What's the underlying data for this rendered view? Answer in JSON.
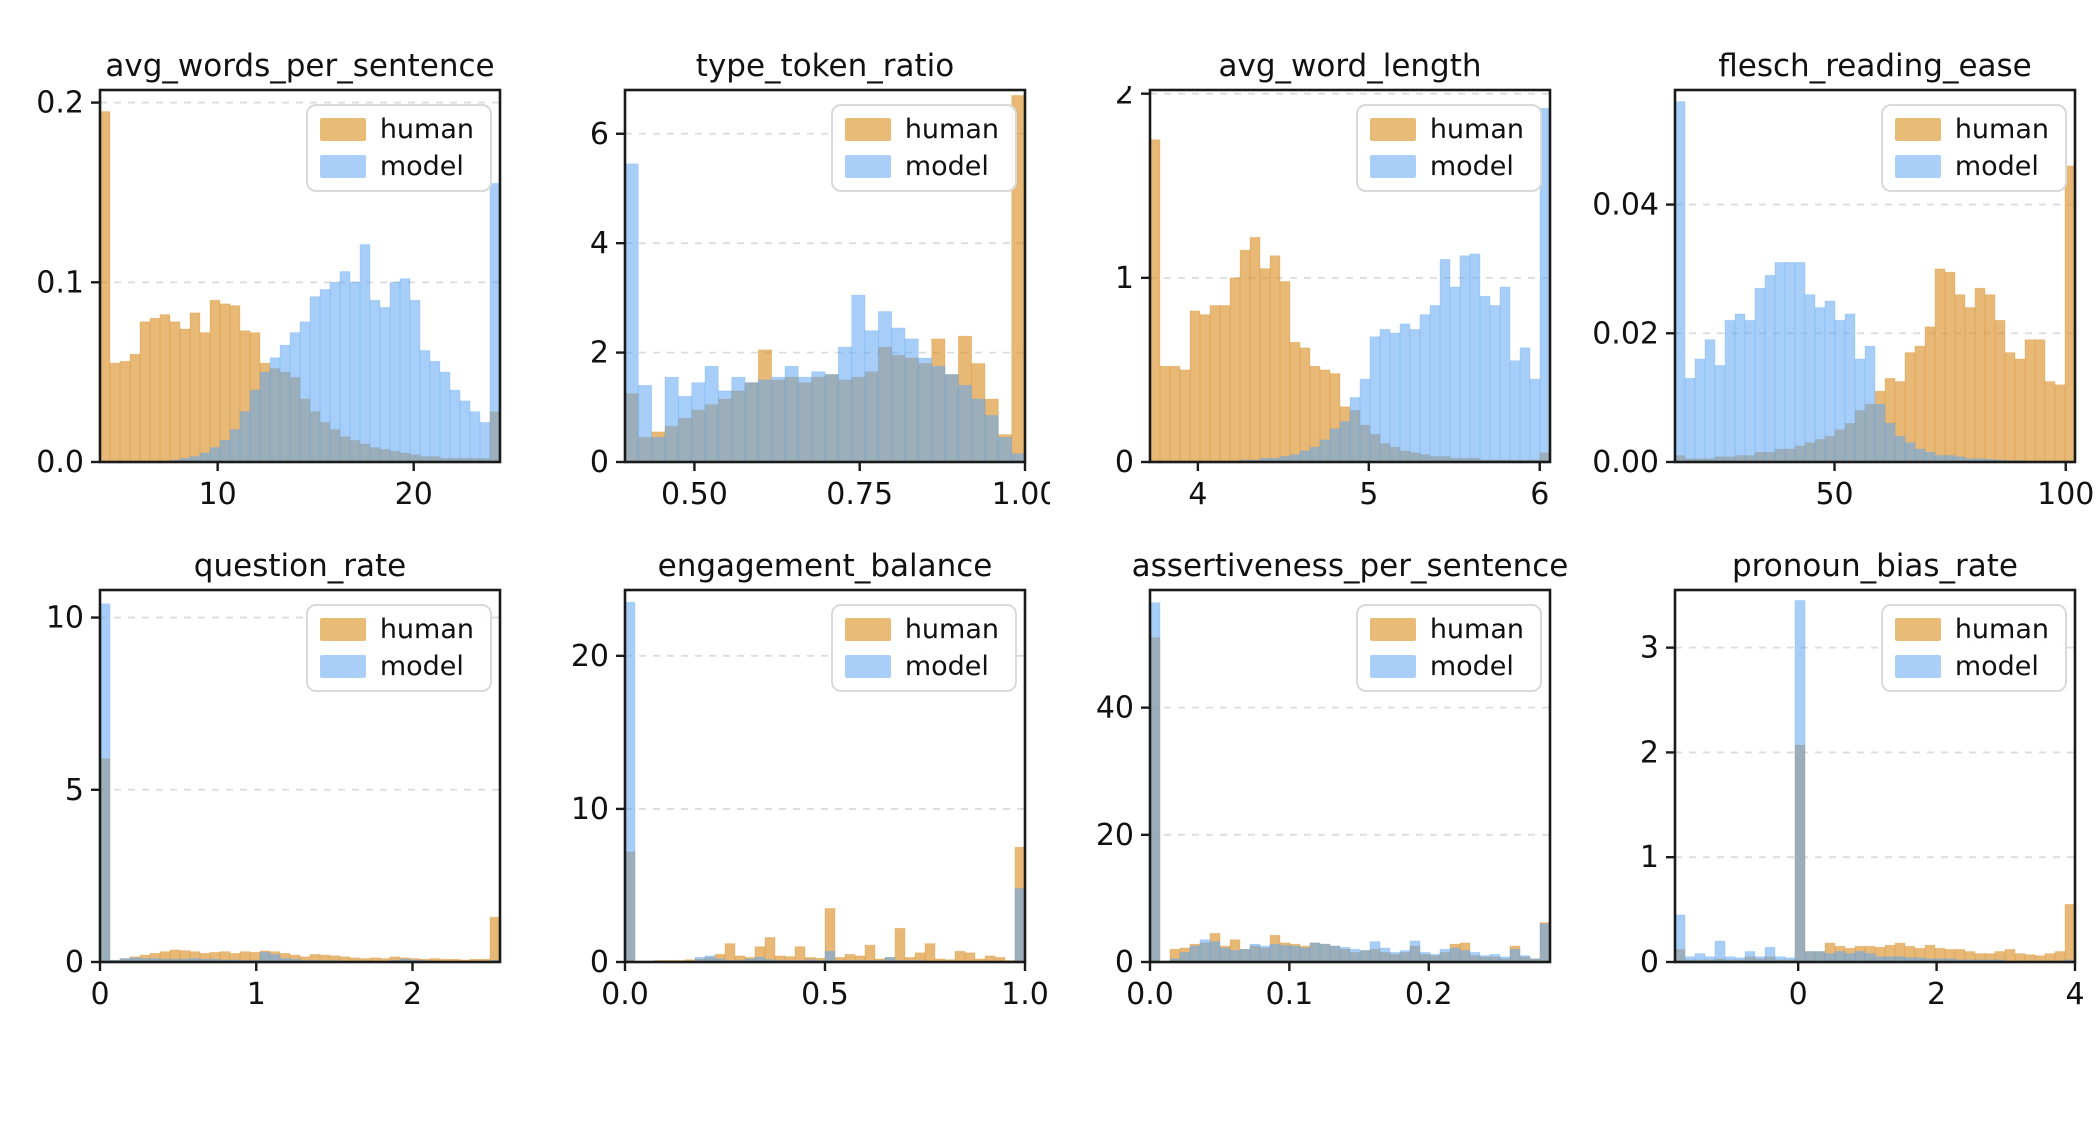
{
  "figure": {
    "background": "#ffffff",
    "rows": 2,
    "cols": 4
  },
  "legend": {
    "human_label": "human",
    "model_label": "model"
  },
  "style": {
    "human_color": "#d98c22",
    "human_opacity": 0.62,
    "model_color": "#5ea5f2",
    "model_opacity": 0.55,
    "legend_swatch_human": "#e8bb77",
    "legend_swatch_model": "#a9cff8",
    "grid_color": "#dcdcdc",
    "spine_color": "#1a1a1a",
    "legend_position": "upper right",
    "grid": "horizontal dashed"
  },
  "chart_data": [
    {
      "type": "bar",
      "subtype": "histogram-overlay",
      "title": "avg_words_per_sentence",
      "xlim": [
        4.0,
        24.4
      ],
      "ylim": [
        0,
        0.207
      ],
      "xticks": [
        10,
        20
      ],
      "xtick_labels": [
        "10",
        "20"
      ],
      "yticks": [
        0,
        0.1,
        0.2
      ],
      "ytick_labels": [
        "0.0",
        "0.1",
        "0.2"
      ],
      "series": [
        {
          "name": "human",
          "values": [
            0.195,
            0.055,
            0.056,
            0.06,
            0.078,
            0.08,
            0.082,
            0.078,
            0.074,
            0.083,
            0.072,
            0.09,
            0.088,
            0.087,
            0.073,
            0.072,
            0.055,
            0.052,
            0.05,
            0.047,
            0.035,
            0.028,
            0.022,
            0.018,
            0.014,
            0.012,
            0.01,
            0.008,
            0.007,
            0.006,
            0.005,
            0.004,
            0.003,
            0.003,
            0.002,
            0.002,
            0.002,
            0.002,
            0.002,
            0.028
          ]
        },
        {
          "name": "model",
          "values": [
            0,
            0,
            0,
            0,
            0,
            0,
            0,
            0.001,
            0.002,
            0.003,
            0.005,
            0.008,
            0.012,
            0.018,
            0.028,
            0.04,
            0.05,
            0.058,
            0.065,
            0.072,
            0.078,
            0.092,
            0.096,
            0.1,
            0.106,
            0.1,
            0.121,
            0.09,
            0.086,
            0.1,
            0.102,
            0.09,
            0.062,
            0.056,
            0.05,
            0.04,
            0.034,
            0.028,
            0.022,
            0.155
          ]
        }
      ]
    },
    {
      "type": "bar",
      "subtype": "histogram-overlay",
      "title": "type_token_ratio",
      "xlim": [
        0.395,
        1.0
      ],
      "ylim": [
        0,
        6.8
      ],
      "xticks": [
        0.5,
        0.75,
        1.0
      ],
      "xtick_labels": [
        "0.50",
        "0.75",
        "1.00"
      ],
      "yticks": [
        0,
        2,
        4,
        6
      ],
      "ytick_labels": [
        "0",
        "2",
        "4",
        "6"
      ],
      "series": [
        {
          "name": "human",
          "values": [
            1.25,
            0.45,
            0.55,
            0.65,
            0.8,
            0.95,
            1.05,
            1.15,
            1.3,
            1.45,
            2.05,
            1.5,
            1.55,
            1.45,
            1.55,
            1.6,
            1.5,
            1.55,
            1.65,
            2.1,
            1.95,
            1.9,
            1.8,
            2.25,
            1.6,
            2.3,
            1.8,
            1.15,
            0.5,
            6.7
          ]
        },
        {
          "name": "model",
          "values": [
            5.45,
            1.4,
            0.45,
            1.55,
            1.2,
            1.45,
            1.75,
            1.3,
            1.55,
            1.45,
            1.5,
            1.55,
            1.75,
            1.55,
            1.65,
            1.6,
            2.1,
            3.05,
            2.4,
            2.75,
            2.45,
            2.25,
            1.9,
            1.75,
            1.6,
            1.4,
            1.15,
            0.85,
            0.45,
            0.15
          ]
        }
      ]
    },
    {
      "type": "bar",
      "subtype": "histogram-overlay",
      "title": "avg_word_length",
      "xlim": [
        3.72,
        6.06
      ],
      "ylim": [
        0,
        2.02
      ],
      "xticks": [
        4,
        5,
        6
      ],
      "xtick_labels": [
        "4",
        "5",
        "6"
      ],
      "yticks": [
        0,
        1,
        2
      ],
      "ytick_labels": [
        "0",
        "1",
        "2"
      ],
      "series": [
        {
          "name": "human",
          "values": [
            1.75,
            0.52,
            0.52,
            0.5,
            0.82,
            0.8,
            0.85,
            0.85,
            1.0,
            1.15,
            1.22,
            1.05,
            1.12,
            0.98,
            0.65,
            0.62,
            0.52,
            0.5,
            0.48,
            0.3,
            0.28,
            0.2,
            0.15,
            0.1,
            0.08,
            0.06,
            0.05,
            0.04,
            0.03,
            0.03,
            0.02,
            0.02,
            0.02,
            0.01,
            0.01,
            0.01,
            0.01,
            0.01,
            0.01,
            0.05
          ]
        },
        {
          "name": "model",
          "values": [
            0,
            0,
            0,
            0,
            0,
            0,
            0,
            0,
            0,
            0.01,
            0.01,
            0.02,
            0.02,
            0.03,
            0.04,
            0.06,
            0.08,
            0.12,
            0.18,
            0.22,
            0.35,
            0.45,
            0.68,
            0.72,
            0.7,
            0.75,
            0.72,
            0.8,
            0.85,
            1.1,
            0.95,
            1.12,
            1.13,
            0.9,
            0.85,
            0.95,
            0.55,
            0.62,
            0.45,
            1.92
          ]
        }
      ]
    },
    {
      "type": "bar",
      "subtype": "histogram-overlay",
      "title": "flesch_reading_ease",
      "xlim": [
        15.5,
        102
      ],
      "ylim": [
        0,
        0.0578
      ],
      "xticks": [
        50,
        100
      ],
      "xtick_labels": [
        "50",
        "100"
      ],
      "yticks": [
        0,
        0.02,
        0.04
      ],
      "ytick_labels": [
        "0.00",
        "0.02",
        "0.04"
      ],
      "series": [
        {
          "name": "human",
          "values": [
            0.001,
            0.0005,
            0.0005,
            0.0005,
            0.0008,
            0.0008,
            0.001,
            0.001,
            0.0015,
            0.0015,
            0.002,
            0.002,
            0.0025,
            0.003,
            0.0035,
            0.004,
            0.005,
            0.006,
            0.008,
            0.009,
            0.011,
            0.013,
            0.0125,
            0.017,
            0.018,
            0.021,
            0.03,
            0.0295,
            0.026,
            0.024,
            0.027,
            0.026,
            0.022,
            0.017,
            0.016,
            0.019,
            0.019,
            0.0125,
            0.012,
            0.046
          ]
        },
        {
          "name": "model",
          "values": [
            0.056,
            0.013,
            0.016,
            0.019,
            0.015,
            0.022,
            0.023,
            0.022,
            0.027,
            0.029,
            0.031,
            0.031,
            0.031,
            0.026,
            0.024,
            0.025,
            0.022,
            0.023,
            0.016,
            0.018,
            0.009,
            0.006,
            0.004,
            0.003,
            0.002,
            0.0015,
            0.001,
            0.001,
            0.0008,
            0.0005,
            0.0005,
            0.0004,
            0.0003,
            0.0002,
            0.0002,
            0.0001,
            0.0001,
            0,
            0,
            0
          ]
        }
      ]
    },
    {
      "type": "bar",
      "subtype": "histogram-overlay",
      "title": "question_rate",
      "xlim": [
        0,
        2.56
      ],
      "ylim": [
        0,
        10.8
      ],
      "xticks": [
        0,
        1,
        2
      ],
      "xtick_labels": [
        "0",
        "1",
        "2"
      ],
      "yticks": [
        0,
        5,
        10
      ],
      "ytick_labels": [
        "0",
        "5",
        "10"
      ],
      "series": [
        {
          "name": "human",
          "values": [
            5.9,
            0.05,
            0.1,
            0.15,
            0.2,
            0.25,
            0.3,
            0.35,
            0.33,
            0.3,
            0.25,
            0.28,
            0.3,
            0.25,
            0.3,
            0.28,
            0.32,
            0.3,
            0.25,
            0.2,
            0.15,
            0.22,
            0.2,
            0.18,
            0.15,
            0.12,
            0.1,
            0.12,
            0.1,
            0.15,
            0.12,
            0.1,
            0.08,
            0.1,
            0.08,
            0.08,
            0.06,
            0.08,
            0.08,
            1.3
          ]
        },
        {
          "name": "model",
          "values": [
            10.4,
            0.05,
            0.1,
            0.12,
            0.1,
            0.1,
            0.08,
            0.08,
            0.08,
            0.1,
            0.08,
            0.08,
            0.06,
            0.06,
            0.05,
            0.05,
            0.28,
            0.22,
            0.1,
            0.08,
            0.05,
            0.05,
            0.04,
            0.04,
            0.03,
            0.03,
            0.03,
            0.02,
            0.02,
            0.05,
            0.08,
            0.06,
            0.04,
            0.03,
            0.02,
            0.02,
            0.01,
            0.01,
            0.01,
            0.05
          ]
        }
      ]
    },
    {
      "type": "bar",
      "subtype": "histogram-overlay",
      "title": "engagement_balance",
      "xlim": [
        0,
        1.0
      ],
      "ylim": [
        0,
        24.3
      ],
      "xticks": [
        0,
        0.5,
        1.0
      ],
      "xtick_labels": [
        "0.0",
        "0.5",
        "1.0"
      ],
      "yticks": [
        0,
        10,
        20
      ],
      "ytick_labels": [
        "0",
        "10",
        "20"
      ],
      "series": [
        {
          "name": "human",
          "values": [
            7.2,
            0,
            0.05,
            0.1,
            0.1,
            0.1,
            0.15,
            0.2,
            0.3,
            0.5,
            1.2,
            0.4,
            0.3,
            1.0,
            1.6,
            0.4,
            0.35,
            1.0,
            0.3,
            0.25,
            3.5,
            0.3,
            0.5,
            0.4,
            1.1,
            0.2,
            0.3,
            2.2,
            0.3,
            0.6,
            1.2,
            0.2,
            0.15,
            0.7,
            0.6,
            0.2,
            0.4,
            0.3,
            0.1,
            7.5
          ]
        },
        {
          "name": "model",
          "values": [
            23.5,
            0,
            0,
            0,
            0,
            0,
            0,
            0.3,
            0.4,
            0.2,
            0.1,
            0.1,
            0.2,
            0.3,
            0.15,
            0.1,
            0.1,
            0.1,
            0.15,
            0.1,
            0.7,
            0.1,
            0.1,
            0.1,
            0.1,
            0.1,
            0.3,
            0.1,
            0.1,
            0.1,
            0.05,
            0.05,
            0.05,
            0.05,
            0.05,
            0.05,
            0.05,
            0.05,
            0.05,
            4.8
          ]
        }
      ]
    },
    {
      "type": "bar",
      "subtype": "histogram-overlay",
      "title": "assertiveness_per_sentence",
      "xlim": [
        0,
        0.287
      ],
      "ylim": [
        0,
        58.5
      ],
      "xticks": [
        0,
        0.1,
        0.2
      ],
      "xtick_labels": [
        "0.0",
        "0.1",
        "0.2"
      ],
      "yticks": [
        0,
        20,
        40
      ],
      "ytick_labels": [
        "0",
        "20",
        "40"
      ],
      "series": [
        {
          "name": "human",
          "values": [
            51.0,
            0,
            2.0,
            2.2,
            2.8,
            3.0,
            4.5,
            2.5,
            3.5,
            2.0,
            2.5,
            2.2,
            4.2,
            3.0,
            2.8,
            2.5,
            3.0,
            2.8,
            2.5,
            2.0,
            1.5,
            1.8,
            2.0,
            1.5,
            1.2,
            1.5,
            2.5,
            1.2,
            1.0,
            1.5,
            2.8,
            3.0,
            1.0,
            0.8,
            0.8,
            0.5,
            2.5,
            0.8,
            0.5,
            6.2
          ]
        },
        {
          "name": "model",
          "values": [
            56.5,
            0,
            0.5,
            1.5,
            2.5,
            3.5,
            3.2,
            2.2,
            1.8,
            2.0,
            2.8,
            2.5,
            2.8,
            2.6,
            2.5,
            2.2,
            3.0,
            2.8,
            2.5,
            2.3,
            2.0,
            1.8,
            3.2,
            2.2,
            1.5,
            1.8,
            3.3,
            1.5,
            1.2,
            2.0,
            2.2,
            1.8,
            1.5,
            1.0,
            1.2,
            0.8,
            2.0,
            1.0,
            0.5,
            6.0
          ]
        }
      ]
    },
    {
      "type": "bar",
      "subtype": "histogram-overlay",
      "title": "pronoun_bias_rate",
      "xlim": [
        -1.78,
        4.0
      ],
      "ylim": [
        0,
        3.55
      ],
      "xticks": [
        0,
        2,
        4
      ],
      "xtick_labels": [
        "0",
        "2",
        "4"
      ],
      "yticks": [
        0,
        1,
        2,
        3
      ],
      "ytick_labels": [
        "0",
        "1",
        "2",
        "3"
      ],
      "series": [
        {
          "name": "human",
          "values": [
            0.12,
            0.02,
            0.02,
            0.02,
            0.03,
            0.02,
            0.02,
            0.05,
            0.03,
            0.05,
            0.02,
            0.02,
            2.07,
            0.1,
            0.1,
            0.18,
            0.15,
            0.13,
            0.15,
            0.15,
            0.14,
            0.16,
            0.18,
            0.15,
            0.13,
            0.16,
            0.13,
            0.12,
            0.12,
            0.1,
            0.08,
            0.08,
            0.1,
            0.12,
            0.08,
            0.07,
            0.06,
            0.08,
            0.1,
            0.55
          ]
        },
        {
          "name": "model",
          "values": [
            0.45,
            0.05,
            0.08,
            0.05,
            0.2,
            0.05,
            0.04,
            0.1,
            0.05,
            0.14,
            0.05,
            0.04,
            3.45,
            0.1,
            0.1,
            0.08,
            0.1,
            0.08,
            0.1,
            0.08,
            0.05,
            0.05,
            0.05,
            0.04,
            0.04,
            0.03,
            0.03,
            0.03,
            0.02,
            0.02,
            0.02,
            0.02,
            0.02,
            0.01,
            0.01,
            0.01,
            0.01,
            0.01,
            0.01,
            0.02
          ]
        }
      ]
    }
  ]
}
